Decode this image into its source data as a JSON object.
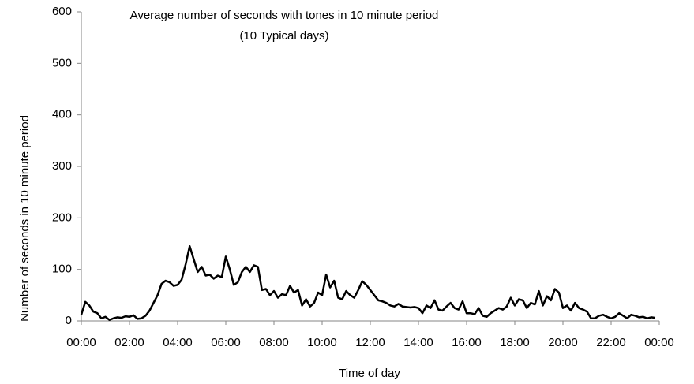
{
  "chart_data": {
    "type": "line",
    "title": "Average number of seconds with tones in 10 minute period",
    "subtitle": "(10 Typical days)",
    "x_label": "Time of day",
    "y_label": "Number of seconds in 10 minute period",
    "x": [
      0,
      10,
      20,
      30,
      40,
      50,
      60,
      70,
      80,
      90,
      100,
      110,
      120,
      130,
      140,
      150,
      160,
      170,
      180,
      190,
      200,
      210,
      220,
      230,
      240,
      250,
      260,
      270,
      280,
      290,
      300,
      310,
      320,
      330,
      340,
      350,
      360,
      370,
      380,
      390,
      400,
      410,
      420,
      430,
      440,
      450,
      460,
      470,
      480,
      490,
      500,
      510,
      520,
      530,
      540,
      550,
      560,
      570,
      580,
      590,
      600,
      610,
      620,
      630,
      640,
      650,
      660,
      670,
      680,
      690,
      700,
      710,
      720,
      730,
      740,
      750,
      760,
      770,
      780,
      790,
      800,
      810,
      820,
      830,
      840,
      850,
      860,
      870,
      880,
      890,
      900,
      910,
      920,
      930,
      940,
      950,
      960,
      970,
      980,
      990,
      1000,
      1010,
      1020,
      1030,
      1040,
      1050,
      1060,
      1070,
      1080,
      1090,
      1100,
      1110,
      1120,
      1130,
      1140,
      1150,
      1160,
      1170,
      1180,
      1190,
      1200,
      1210,
      1220,
      1230,
      1240,
      1250,
      1260,
      1270,
      1280,
      1290,
      1300,
      1310,
      1320,
      1330,
      1340,
      1350,
      1360,
      1370,
      1380,
      1390,
      1400,
      1410,
      1420,
      1430
    ],
    "series": [
      {
        "name": "Average",
        "color": "#000000",
        "values": [
          12,
          37,
          30,
          18,
          15,
          5,
          8,
          2,
          5,
          7,
          6,
          9,
          8,
          11,
          4,
          5,
          10,
          20,
          35,
          50,
          72,
          78,
          75,
          68,
          70,
          80,
          110,
          145,
          120,
          95,
          105,
          88,
          90,
          82,
          88,
          85,
          125,
          100,
          70,
          75,
          95,
          105,
          95,
          108,
          105,
          60,
          62,
          50,
          58,
          45,
          52,
          50,
          68,
          55,
          60,
          30,
          42,
          28,
          35,
          55,
          50,
          90,
          65,
          78,
          45,
          42,
          58,
          50,
          45,
          60,
          77,
          70,
          60,
          50,
          40,
          38,
          35,
          30,
          28,
          33,
          28,
          27,
          26,
          27,
          25,
          15,
          30,
          25,
          40,
          22,
          20,
          28,
          35,
          25,
          22,
          38,
          15,
          15,
          13,
          25,
          10,
          8,
          15,
          20,
          25,
          22,
          28,
          45,
          30,
          42,
          40,
          25,
          35,
          32,
          58,
          30,
          48,
          40,
          62,
          55,
          25,
          30,
          20,
          35,
          25,
          22,
          18,
          5,
          5,
          10,
          12,
          8,
          5,
          8,
          15,
          10,
          5,
          12,
          10,
          7,
          8,
          5,
          7,
          6
        ]
      }
    ],
    "xlim": [
      0,
      1440
    ],
    "xticks": [
      {
        "value": 0,
        "label": "00:00"
      },
      {
        "value": 120,
        "label": "02:00"
      },
      {
        "value": 240,
        "label": "04:00"
      },
      {
        "value": 360,
        "label": "06:00"
      },
      {
        "value": 480,
        "label": "08:00"
      },
      {
        "value": 600,
        "label": "10:00"
      },
      {
        "value": 720,
        "label": "12:00"
      },
      {
        "value": 840,
        "label": "14:00"
      },
      {
        "value": 960,
        "label": "16:00"
      },
      {
        "value": 1080,
        "label": "18:00"
      },
      {
        "value": 1200,
        "label": "20:00"
      },
      {
        "value": 1320,
        "label": "22:00"
      },
      {
        "value": 1440,
        "label": "00:00"
      }
    ],
    "ylim": [
      0,
      600
    ],
    "yticks": [
      0,
      100,
      200,
      300,
      400,
      500,
      600
    ],
    "grid": false
  }
}
